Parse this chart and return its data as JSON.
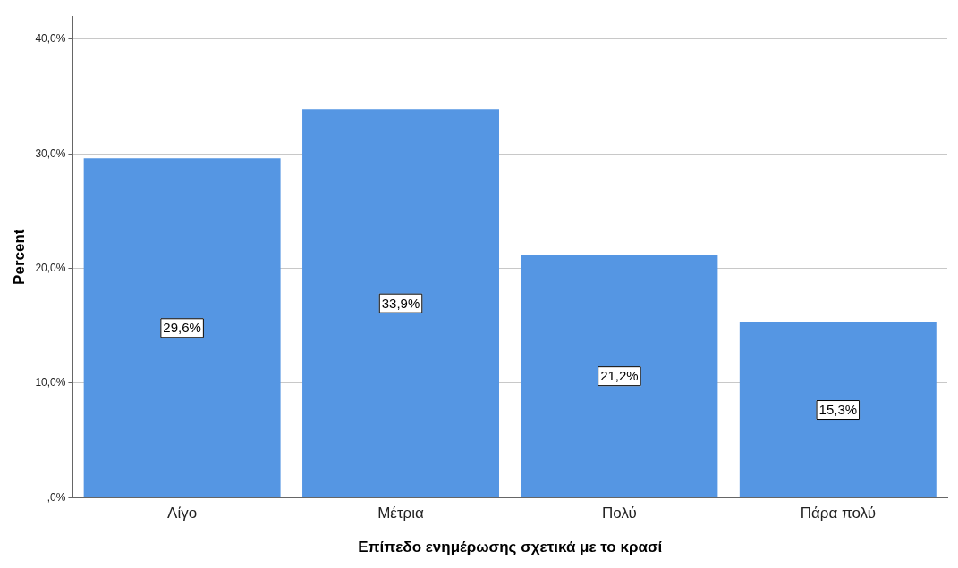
{
  "chart_data": {
    "type": "bar",
    "xlabel": "Επίπεδο ενημέρωσης σχετικά με το κρασί",
    "ylabel": "Percent",
    "categories": [
      "Λίγο",
      "Μέτρια",
      "Πολύ",
      "Πάρα πολύ"
    ],
    "values": [
      29.6,
      33.9,
      21.2,
      15.3
    ],
    "value_labels": [
      "29,6%",
      "33,9%",
      "21,2%",
      "15,3%"
    ],
    "color": "#5596e3",
    "ylim": [
      0,
      42
    ],
    "yticks": [
      {
        "value": 0,
        "label": ",0%"
      },
      {
        "value": 10,
        "label": "10,0%"
      },
      {
        "value": 20,
        "label": "20,0%"
      },
      {
        "value": 30,
        "label": "30,0%"
      },
      {
        "value": 40,
        "label": "40,0%"
      }
    ],
    "grid": "y"
  }
}
